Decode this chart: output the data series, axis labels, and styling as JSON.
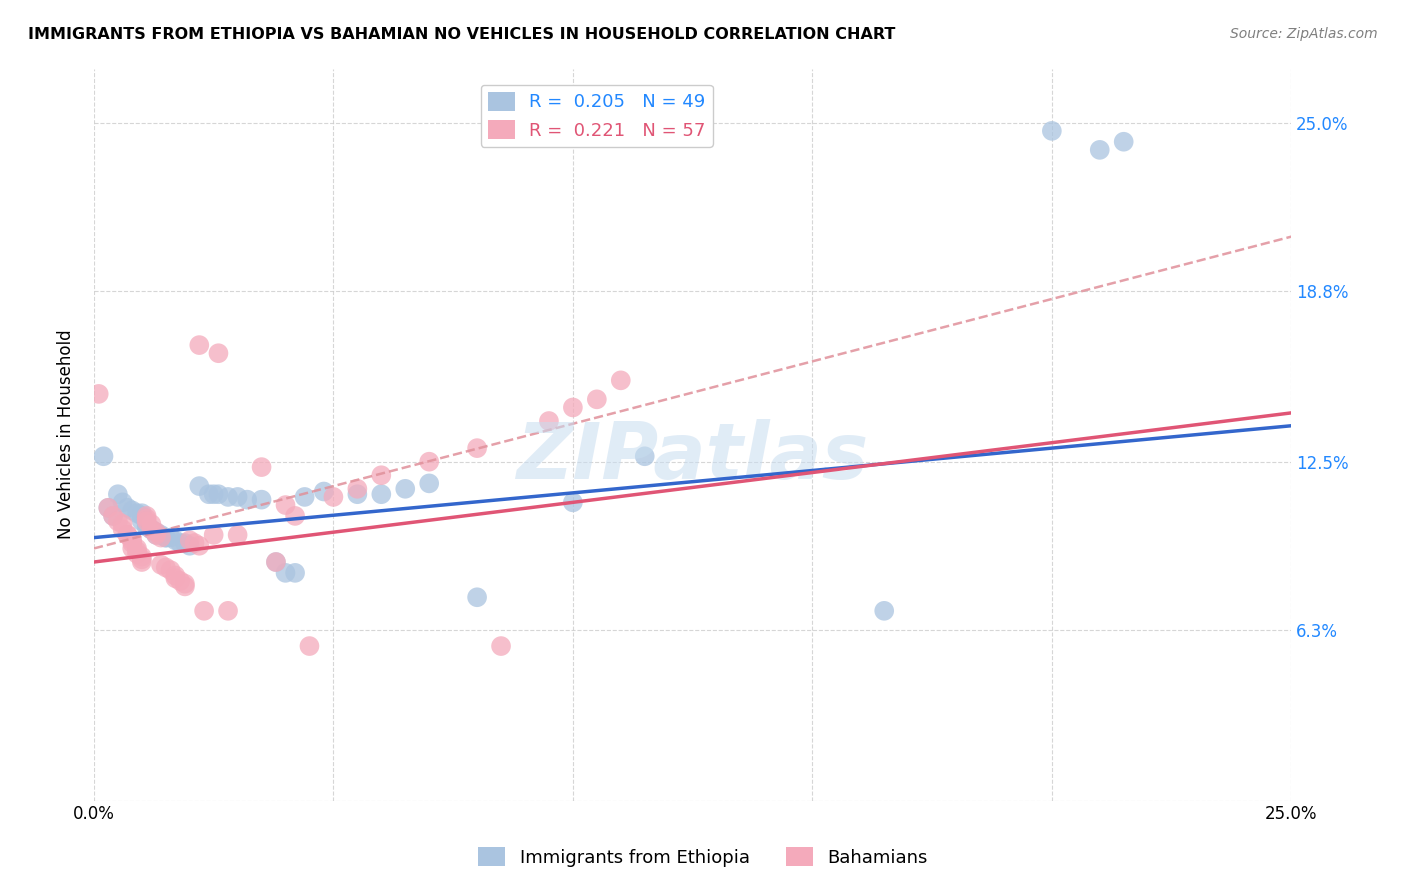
{
  "title": "IMMIGRANTS FROM ETHIOPIA VS BAHAMIAN NO VEHICLES IN HOUSEHOLD CORRELATION CHART",
  "source": "Source: ZipAtlas.com",
  "ylabel": "No Vehicles in Household",
  "yticks": [
    0.0,
    0.063,
    0.125,
    0.188,
    0.25
  ],
  "ytick_labels": [
    "",
    "6.3%",
    "12.5%",
    "18.8%",
    "25.0%"
  ],
  "xlim": [
    0.0,
    0.25
  ],
  "ylim": [
    0.0,
    0.27
  ],
  "watermark": "ZIPatlas",
  "blue_color": "#aac4e0",
  "pink_color": "#f4aabb",
  "blue_line_color": "#3366cc",
  "pink_line_color": "#e05575",
  "pink_dash_color": "#e0909a",
  "blue_r": "0.205",
  "blue_n": "49",
  "pink_r": "0.221",
  "pink_n": "57",
  "blue_scatter": [
    [
      0.002,
      0.127
    ],
    [
      0.003,
      0.108
    ],
    [
      0.004,
      0.105
    ],
    [
      0.005,
      0.113
    ],
    [
      0.006,
      0.11
    ],
    [
      0.007,
      0.108
    ],
    [
      0.008,
      0.107
    ],
    [
      0.009,
      0.106
    ],
    [
      0.01,
      0.106
    ],
    [
      0.01,
      0.105
    ],
    [
      0.01,
      0.103
    ],
    [
      0.011,
      0.102
    ],
    [
      0.011,
      0.101
    ],
    [
      0.012,
      0.1
    ],
    [
      0.012,
      0.1
    ],
    [
      0.013,
      0.099
    ],
    [
      0.013,
      0.098
    ],
    [
      0.014,
      0.098
    ],
    [
      0.015,
      0.097
    ],
    [
      0.015,
      0.097
    ],
    [
      0.016,
      0.097
    ],
    [
      0.017,
      0.096
    ],
    [
      0.018,
      0.095
    ],
    [
      0.019,
      0.095
    ],
    [
      0.02,
      0.094
    ],
    [
      0.022,
      0.116
    ],
    [
      0.024,
      0.113
    ],
    [
      0.025,
      0.113
    ],
    [
      0.026,
      0.113
    ],
    [
      0.028,
      0.112
    ],
    [
      0.03,
      0.112
    ],
    [
      0.032,
      0.111
    ],
    [
      0.035,
      0.111
    ],
    [
      0.038,
      0.088
    ],
    [
      0.04,
      0.084
    ],
    [
      0.042,
      0.084
    ],
    [
      0.044,
      0.112
    ],
    [
      0.048,
      0.114
    ],
    [
      0.055,
      0.113
    ],
    [
      0.06,
      0.113
    ],
    [
      0.065,
      0.115
    ],
    [
      0.07,
      0.117
    ],
    [
      0.08,
      0.075
    ],
    [
      0.1,
      0.11
    ],
    [
      0.115,
      0.127
    ],
    [
      0.165,
      0.07
    ],
    [
      0.2,
      0.247
    ],
    [
      0.21,
      0.24
    ],
    [
      0.215,
      0.243
    ]
  ],
  "pink_scatter": [
    [
      0.001,
      0.15
    ],
    [
      0.003,
      0.108
    ],
    [
      0.004,
      0.105
    ],
    [
      0.005,
      0.103
    ],
    [
      0.006,
      0.102
    ],
    [
      0.006,
      0.1
    ],
    [
      0.007,
      0.098
    ],
    [
      0.007,
      0.098
    ],
    [
      0.008,
      0.096
    ],
    [
      0.008,
      0.095
    ],
    [
      0.008,
      0.093
    ],
    [
      0.009,
      0.093
    ],
    [
      0.009,
      0.092
    ],
    [
      0.009,
      0.091
    ],
    [
      0.01,
      0.09
    ],
    [
      0.01,
      0.089
    ],
    [
      0.01,
      0.088
    ],
    [
      0.011,
      0.105
    ],
    [
      0.011,
      0.104
    ],
    [
      0.011,
      0.103
    ],
    [
      0.012,
      0.102
    ],
    [
      0.012,
      0.1
    ],
    [
      0.013,
      0.099
    ],
    [
      0.013,
      0.098
    ],
    [
      0.014,
      0.097
    ],
    [
      0.014,
      0.087
    ],
    [
      0.015,
      0.086
    ],
    [
      0.016,
      0.085
    ],
    [
      0.017,
      0.083
    ],
    [
      0.017,
      0.082
    ],
    [
      0.018,
      0.081
    ],
    [
      0.019,
      0.08
    ],
    [
      0.019,
      0.079
    ],
    [
      0.02,
      0.096
    ],
    [
      0.021,
      0.095
    ],
    [
      0.022,
      0.094
    ],
    [
      0.022,
      0.168
    ],
    [
      0.023,
      0.07
    ],
    [
      0.025,
      0.098
    ],
    [
      0.026,
      0.165
    ],
    [
      0.028,
      0.07
    ],
    [
      0.03,
      0.098
    ],
    [
      0.035,
      0.123
    ],
    [
      0.038,
      0.088
    ],
    [
      0.04,
      0.109
    ],
    [
      0.042,
      0.105
    ],
    [
      0.045,
      0.057
    ],
    [
      0.05,
      0.112
    ],
    [
      0.055,
      0.115
    ],
    [
      0.06,
      0.12
    ],
    [
      0.07,
      0.125
    ],
    [
      0.08,
      0.13
    ],
    [
      0.085,
      0.057
    ],
    [
      0.095,
      0.14
    ],
    [
      0.1,
      0.145
    ],
    [
      0.105,
      0.148
    ],
    [
      0.11,
      0.155
    ]
  ]
}
